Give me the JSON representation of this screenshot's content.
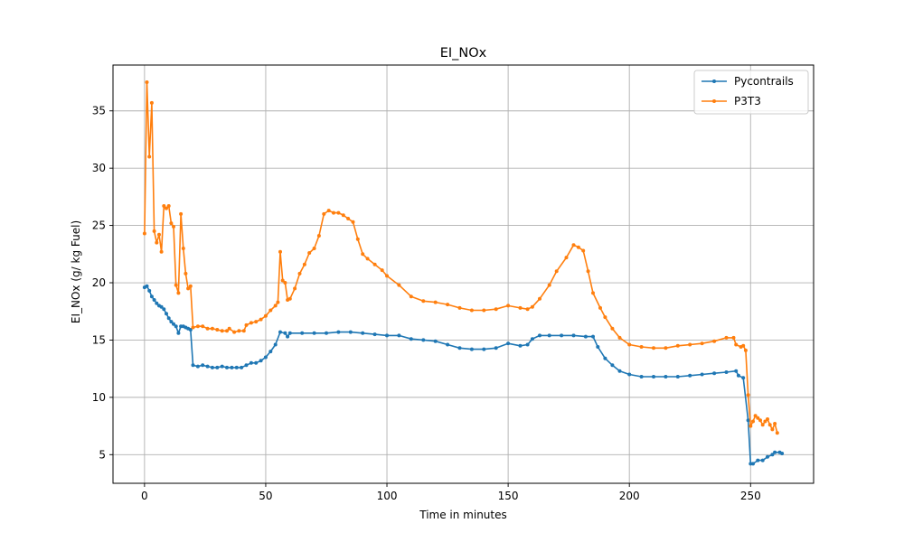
{
  "chart_data": {
    "type": "line",
    "title": "EI_NOx",
    "xlabel": "Time in minutes",
    "ylabel": "EI_NOx (g/ kg Fuel)",
    "xlim": [
      -13,
      276
    ],
    "ylim": [
      2.5,
      39
    ],
    "xticks": [
      0,
      50,
      100,
      150,
      200,
      250
    ],
    "yticks": [
      5,
      10,
      15,
      20,
      25,
      30,
      35
    ],
    "grid": true,
    "legend_position": "top-right",
    "series": [
      {
        "name": "Pycontrails",
        "color": "#1f77b4",
        "marker": "circle",
        "points": [
          [
            0,
            19.6
          ],
          [
            1,
            19.7
          ],
          [
            2,
            19.3
          ],
          [
            3,
            18.8
          ],
          [
            4,
            18.5
          ],
          [
            5,
            18.2
          ],
          [
            6,
            18.0
          ],
          [
            7,
            17.9
          ],
          [
            8,
            17.7
          ],
          [
            9,
            17.3
          ],
          [
            10,
            16.9
          ],
          [
            11,
            16.6
          ],
          [
            12,
            16.4
          ],
          [
            13,
            16.2
          ],
          [
            14,
            15.6
          ],
          [
            15,
            16.2
          ],
          [
            16,
            16.2
          ],
          [
            17,
            16.1
          ],
          [
            18,
            16.0
          ],
          [
            19,
            15.9
          ],
          [
            20,
            12.8
          ],
          [
            22,
            12.7
          ],
          [
            24,
            12.8
          ],
          [
            26,
            12.7
          ],
          [
            28,
            12.6
          ],
          [
            30,
            12.6
          ],
          [
            32,
            12.7
          ],
          [
            34,
            12.6
          ],
          [
            36,
            12.6
          ],
          [
            38,
            12.6
          ],
          [
            40,
            12.6
          ],
          [
            42,
            12.8
          ],
          [
            44,
            13.0
          ],
          [
            46,
            13.0
          ],
          [
            48,
            13.2
          ],
          [
            50,
            13.5
          ],
          [
            52,
            14.0
          ],
          [
            54,
            14.6
          ],
          [
            56,
            15.7
          ],
          [
            58,
            15.6
          ],
          [
            59,
            15.3
          ],
          [
            60,
            15.6
          ],
          [
            65,
            15.6
          ],
          [
            70,
            15.6
          ],
          [
            75,
            15.6
          ],
          [
            80,
            15.7
          ],
          [
            85,
            15.7
          ],
          [
            90,
            15.6
          ],
          [
            95,
            15.5
          ],
          [
            100,
            15.4
          ],
          [
            105,
            15.4
          ],
          [
            110,
            15.1
          ],
          [
            115,
            15.0
          ],
          [
            120,
            14.9
          ],
          [
            125,
            14.6
          ],
          [
            130,
            14.3
          ],
          [
            135,
            14.2
          ],
          [
            140,
            14.2
          ],
          [
            145,
            14.3
          ],
          [
            150,
            14.7
          ],
          [
            155,
            14.5
          ],
          [
            158,
            14.6
          ],
          [
            160,
            15.1
          ],
          [
            163,
            15.4
          ],
          [
            167,
            15.4
          ],
          [
            172,
            15.4
          ],
          [
            177,
            15.4
          ],
          [
            182,
            15.3
          ],
          [
            185,
            15.3
          ],
          [
            187,
            14.4
          ],
          [
            190,
            13.4
          ],
          [
            193,
            12.8
          ],
          [
            196,
            12.3
          ],
          [
            200,
            12.0
          ],
          [
            205,
            11.8
          ],
          [
            210,
            11.8
          ],
          [
            215,
            11.8
          ],
          [
            220,
            11.8
          ],
          [
            225,
            11.9
          ],
          [
            230,
            12.0
          ],
          [
            235,
            12.1
          ],
          [
            240,
            12.2
          ],
          [
            244,
            12.3
          ],
          [
            245,
            11.9
          ],
          [
            247,
            11.7
          ],
          [
            249,
            8.0
          ],
          [
            250,
            4.2
          ],
          [
            251,
            4.2
          ],
          [
            253,
            4.5
          ],
          [
            255,
            4.5
          ],
          [
            257,
            4.8
          ],
          [
            259,
            5.0
          ],
          [
            260,
            5.2
          ],
          [
            262,
            5.2
          ],
          [
            263,
            5.1
          ]
        ]
      },
      {
        "name": "P3T3",
        "color": "#ff7f0e",
        "marker": "circle",
        "points": [
          [
            0,
            24.3
          ],
          [
            1,
            37.5
          ],
          [
            2,
            31.0
          ],
          [
            3,
            35.7
          ],
          [
            4,
            24.5
          ],
          [
            5,
            23.5
          ],
          [
            6,
            24.2
          ],
          [
            7,
            22.7
          ],
          [
            8,
            26.7
          ],
          [
            9,
            26.5
          ],
          [
            10,
            26.7
          ],
          [
            11,
            25.2
          ],
          [
            12,
            24.9
          ],
          [
            13,
            19.8
          ],
          [
            14,
            19.1
          ],
          [
            15,
            26.0
          ],
          [
            16,
            23.0
          ],
          [
            17,
            20.8
          ],
          [
            18,
            19.5
          ],
          [
            19,
            19.7
          ],
          [
            20,
            16.1
          ],
          [
            22,
            16.2
          ],
          [
            24,
            16.2
          ],
          [
            26,
            16.0
          ],
          [
            28,
            16.0
          ],
          [
            30,
            15.9
          ],
          [
            32,
            15.8
          ],
          [
            34,
            15.8
          ],
          [
            35,
            16.0
          ],
          [
            37,
            15.7
          ],
          [
            39,
            15.8
          ],
          [
            41,
            15.8
          ],
          [
            42,
            16.3
          ],
          [
            44,
            16.5
          ],
          [
            46,
            16.6
          ],
          [
            48,
            16.8
          ],
          [
            50,
            17.1
          ],
          [
            52,
            17.6
          ],
          [
            54,
            18.0
          ],
          [
            55,
            18.3
          ],
          [
            56,
            22.7
          ],
          [
            57,
            20.2
          ],
          [
            58,
            20.0
          ],
          [
            59,
            18.5
          ],
          [
            60,
            18.6
          ],
          [
            62,
            19.5
          ],
          [
            64,
            20.8
          ],
          [
            66,
            21.6
          ],
          [
            68,
            22.6
          ],
          [
            70,
            23.0
          ],
          [
            72,
            24.1
          ],
          [
            74,
            26.0
          ],
          [
            76,
            26.3
          ],
          [
            78,
            26.1
          ],
          [
            80,
            26.1
          ],
          [
            82,
            25.9
          ],
          [
            84,
            25.6
          ],
          [
            86,
            25.3
          ],
          [
            88,
            23.8
          ],
          [
            90,
            22.5
          ],
          [
            92,
            22.1
          ],
          [
            95,
            21.6
          ],
          [
            98,
            21.1
          ],
          [
            100,
            20.6
          ],
          [
            105,
            19.8
          ],
          [
            110,
            18.8
          ],
          [
            115,
            18.4
          ],
          [
            120,
            18.3
          ],
          [
            125,
            18.1
          ],
          [
            130,
            17.8
          ],
          [
            135,
            17.6
          ],
          [
            140,
            17.6
          ],
          [
            145,
            17.7
          ],
          [
            150,
            18.0
          ],
          [
            155,
            17.8
          ],
          [
            158,
            17.7
          ],
          [
            160,
            17.9
          ],
          [
            163,
            18.6
          ],
          [
            167,
            19.8
          ],
          [
            170,
            21.0
          ],
          [
            174,
            22.2
          ],
          [
            177,
            23.3
          ],
          [
            179,
            23.1
          ],
          [
            181,
            22.8
          ],
          [
            183,
            21.0
          ],
          [
            185,
            19.1
          ],
          [
            188,
            17.8
          ],
          [
            190,
            17.0
          ],
          [
            193,
            16.0
          ],
          [
            196,
            15.2
          ],
          [
            200,
            14.6
          ],
          [
            205,
            14.4
          ],
          [
            210,
            14.3
          ],
          [
            215,
            14.3
          ],
          [
            220,
            14.5
          ],
          [
            225,
            14.6
          ],
          [
            230,
            14.7
          ],
          [
            235,
            14.9
          ],
          [
            240,
            15.2
          ],
          [
            243,
            15.2
          ],
          [
            244,
            14.6
          ],
          [
            246,
            14.4
          ],
          [
            247,
            14.5
          ],
          [
            248,
            14.1
          ],
          [
            249,
            10.2
          ],
          [
            250,
            7.5
          ],
          [
            251,
            7.9
          ],
          [
            252,
            8.4
          ],
          [
            253,
            8.2
          ],
          [
            254,
            8.0
          ],
          [
            255,
            7.6
          ],
          [
            256,
            7.9
          ],
          [
            257,
            8.1
          ],
          [
            258,
            7.6
          ],
          [
            259,
            7.2
          ],
          [
            260,
            7.7
          ],
          [
            261,
            6.9
          ]
        ]
      }
    ]
  }
}
